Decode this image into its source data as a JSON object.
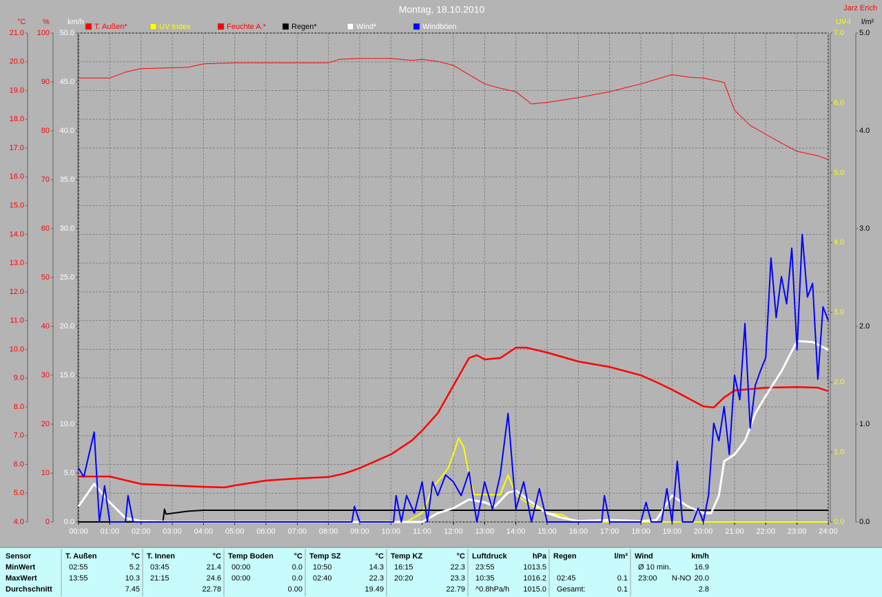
{
  "chart_data": {
    "type": "line",
    "title": "Montag, 18.10.2010",
    "author": "Jarz Erich",
    "grid": true,
    "x_axis": {
      "xlim": [
        0,
        24
      ],
      "xticks": [
        {
          "value": 0,
          "label": "00:00"
        },
        {
          "value": 1,
          "label": "01:00"
        },
        {
          "value": 2,
          "label": "02:00"
        },
        {
          "value": 3,
          "label": "03:00"
        },
        {
          "value": 4,
          "label": "04:00"
        },
        {
          "value": 5,
          "label": "05:00"
        },
        {
          "value": 6,
          "label": "06:00"
        },
        {
          "value": 7,
          "label": "07:00"
        },
        {
          "value": 8,
          "label": "08:00"
        },
        {
          "value": 9,
          "label": "09:00"
        },
        {
          "value": 10,
          "label": "10:00"
        },
        {
          "value": 11,
          "label": "11:00"
        },
        {
          "value": 12,
          "label": "12:00"
        },
        {
          "value": 13,
          "label": "13:00"
        },
        {
          "value": 14,
          "label": "14:00"
        },
        {
          "value": 15,
          "label": "15:00"
        },
        {
          "value": 16,
          "label": "16:00"
        },
        {
          "value": 17,
          "label": "17:00"
        },
        {
          "value": 18,
          "label": "18:00"
        },
        {
          "value": 19,
          "label": "19:00"
        },
        {
          "value": 20,
          "label": "20:00"
        },
        {
          "value": 21,
          "label": "21:00"
        },
        {
          "value": 22,
          "label": "22:00"
        },
        {
          "value": 23,
          "label": "23:00"
        },
        {
          "value": 24,
          "label": "24:00"
        }
      ]
    },
    "y_axes": [
      {
        "label": "°C",
        "side": "left",
        "color": "#ff0000",
        "ylim": [
          4,
          21
        ],
        "yticks": [
          {
            "value": 4,
            "label": "4.0"
          },
          {
            "value": 5,
            "label": "5.0"
          },
          {
            "value": 6,
            "label": "6.0"
          },
          {
            "value": 7,
            "label": "7.0"
          },
          {
            "value": 8,
            "label": "8.0"
          },
          {
            "value": 9,
            "label": "9.0"
          },
          {
            "value": 10,
            "label": "10.0"
          },
          {
            "value": 11,
            "label": "11.0"
          },
          {
            "value": 12,
            "label": "12.0"
          },
          {
            "value": 13,
            "label": "13.0"
          },
          {
            "value": 14,
            "label": "14.0"
          },
          {
            "value": 15,
            "label": "15.0"
          },
          {
            "value": 16,
            "label": "16.0"
          },
          {
            "value": 17,
            "label": "17.0"
          },
          {
            "value": 18,
            "label": "18.0"
          },
          {
            "value": 19,
            "label": "19.0"
          },
          {
            "value": 20,
            "label": "20.0"
          },
          {
            "value": 21,
            "label": "21.0"
          }
        ]
      },
      {
        "label": "%",
        "side": "left",
        "color": "#ff0000",
        "ylim": [
          0,
          100
        ],
        "yticks": [
          0,
          10,
          20,
          30,
          40,
          50,
          60,
          70,
          80,
          90,
          100
        ]
      },
      {
        "label": "km/h",
        "side": "left",
        "color": "#ffffff",
        "ylim": [
          0,
          50
        ],
        "yticks": [
          {
            "value": 0,
            "label": "0.0"
          },
          {
            "value": 5,
            "label": "5.0"
          },
          {
            "value": 10,
            "label": "10.0"
          },
          {
            "value": 15,
            "label": "15.0"
          },
          {
            "value": 20,
            "label": "20.0"
          },
          {
            "value": 25,
            "label": "25.0"
          },
          {
            "value": 30,
            "label": "30.0"
          },
          {
            "value": 35,
            "label": "35.0"
          },
          {
            "value": 40,
            "label": "40.0"
          },
          {
            "value": 45,
            "label": "45.0"
          },
          {
            "value": 50,
            "label": "50.0"
          }
        ]
      },
      {
        "label": "UV-I",
        "side": "right",
        "color": "#ffff00",
        "ylim": [
          0,
          7
        ],
        "yticks": [
          {
            "value": 0,
            "label": "0.0"
          },
          {
            "value": 1,
            "label": "1.0"
          },
          {
            "value": 2,
            "label": "2.0"
          },
          {
            "value": 3,
            "label": "3.0"
          },
          {
            "value": 4,
            "label": "4.0"
          },
          {
            "value": 5,
            "label": "5.0"
          },
          {
            "value": 6,
            "label": "6.0"
          },
          {
            "value": 7,
            "label": "7.0"
          }
        ]
      },
      {
        "label": "l/m²",
        "side": "right",
        "color": "#000000",
        "ylim": [
          0,
          5
        ],
        "yticks": [
          {
            "value": 0,
            "label": "0.0"
          },
          {
            "value": 1,
            "label": "1.0"
          },
          {
            "value": 2,
            "label": "2.0"
          },
          {
            "value": 3,
            "label": "3.0"
          },
          {
            "value": 4,
            "label": "4.0"
          },
          {
            "value": 5,
            "label": "5.0"
          }
        ]
      }
    ],
    "series": [
      {
        "name": "T. Außen*",
        "axis": "°C",
        "color": "#ff0000",
        "label_color": "#ff0000",
        "width": 2.5,
        "x": [
          0,
          1,
          2,
          3,
          4,
          4.667,
          5,
          6,
          7,
          8,
          8.5,
          9,
          10,
          10.667,
          11,
          11.5,
          12,
          12.5,
          12.75,
          13,
          13.5,
          14,
          14.333,
          15,
          16,
          17,
          18,
          18.5,
          19,
          19.5,
          20,
          20.333,
          20.667,
          21,
          22,
          23,
          23.667,
          24
        ],
        "values": [
          5.58,
          5.58,
          5.32,
          5.27,
          5.22,
          5.2,
          5.27,
          5.44,
          5.51,
          5.56,
          5.68,
          5.87,
          6.35,
          6.83,
          7.18,
          7.78,
          8.74,
          9.7,
          9.8,
          9.65,
          9.7,
          10.06,
          10.06,
          9.89,
          9.58,
          9.39,
          9.1,
          8.86,
          8.6,
          8.31,
          8.02,
          7.98,
          8.33,
          8.57,
          8.67,
          8.69,
          8.67,
          8.55
        ]
      },
      {
        "name": "UV Index",
        "axis": "UV-I",
        "color": "#ffff00",
        "label_color": "#ffff00",
        "width": 2,
        "x": [
          0,
          10.5,
          11,
          11.167,
          11.333,
          11.667,
          11.833,
          12,
          12.167,
          12.333,
          12.5,
          12.667,
          13,
          13.5,
          13.75,
          14,
          14.5,
          15,
          15.5,
          15.75,
          16,
          24
        ],
        "values": [
          0,
          0,
          0.13,
          0.3,
          0.49,
          0.67,
          0.77,
          0.97,
          1.2,
          1.07,
          0.67,
          0.39,
          0.39,
          0.39,
          0.67,
          0.39,
          0.23,
          0.13,
          0.1,
          0.03,
          0,
          0
        ]
      },
      {
        "name": "Feuchte A.*",
        "axis": "%",
        "color": "#ff0000",
        "label_color": "#ff0000",
        "width": 1,
        "x": [
          0,
          1,
          1.5,
          2,
          3.5,
          4,
          5,
          6,
          8,
          8.333,
          9,
          10,
          10.667,
          11,
          11.5,
          12,
          12.5,
          13,
          13.5,
          14,
          14.5,
          15,
          16,
          17,
          18,
          19,
          19.5,
          20,
          20.667,
          21,
          21.5,
          22,
          22.5,
          23,
          23.667,
          24
        ],
        "values": [
          90.8,
          90.8,
          92,
          92.7,
          93,
          93.7,
          93.9,
          93.9,
          93.9,
          94.6,
          94.8,
          94.8,
          94.4,
          94.6,
          94.2,
          93.4,
          91.5,
          89.6,
          88.7,
          88,
          85.5,
          85.8,
          86.8,
          88,
          89.6,
          91.5,
          91,
          90.8,
          89.9,
          84.2,
          81.1,
          79.3,
          77.5,
          75.8,
          74.9,
          74.1
        ]
      },
      {
        "name": "Regen*",
        "axis": "l/m²",
        "color": "#000000",
        "label_color": "#000000",
        "width": 2,
        "x": [
          0,
          2.7,
          2.75,
          2.8,
          3.5,
          4,
          24
        ],
        "values": [
          0,
          0,
          0.13,
          0.08,
          0.11,
          0.12,
          0.12
        ]
      },
      {
        "name": "Wind*",
        "axis": "km/h",
        "color": "#ffffff",
        "label_color": "#ffffff",
        "width": 3,
        "x": [
          0,
          0.5,
          1,
          1.5,
          2,
          3,
          11,
          11.5,
          12,
          12.5,
          13,
          13.333,
          13.75,
          14,
          14.5,
          15,
          15.5,
          16,
          17,
          18,
          18.5,
          19,
          19.5,
          20,
          20.25,
          20.5,
          20.667,
          21,
          21.333,
          21.667,
          22,
          22.5,
          23,
          23.5,
          24
        ],
        "values": [
          1.6,
          3.9,
          2,
          0.4,
          0.1,
          0,
          0,
          0.9,
          1.4,
          2.3,
          2,
          1.6,
          3,
          3.2,
          2,
          0.9,
          0.4,
          0.1,
          0.2,
          0.1,
          0.2,
          2.7,
          1.6,
          0.9,
          0.9,
          2.7,
          6.2,
          6.9,
          8.3,
          11.1,
          12.9,
          15.4,
          18.5,
          18.4,
          17.6
        ]
      },
      {
        "name": "Windböen",
        "axis": "km/h",
        "color": "#0000ff",
        "label_color": "#ffffff",
        "width": 2,
        "x": [
          0,
          0.167,
          0.5,
          0.667,
          0.833,
          1,
          1.5,
          1.583,
          1.75,
          8.75,
          8.833,
          9,
          10.083,
          10.167,
          10.333,
          10.5,
          10.75,
          11,
          11.167,
          11.333,
          11.5,
          11.75,
          12,
          12.25,
          12.5,
          12.75,
          13,
          13.25,
          13.5,
          13.75,
          14,
          14.25,
          14.5,
          14.75,
          15,
          16.75,
          16.833,
          17,
          18,
          18.167,
          18.333,
          18.667,
          18.833,
          19,
          19.167,
          19.333,
          19.667,
          19.833,
          20,
          20.167,
          20.333,
          20.5,
          20.667,
          20.833,
          21,
          21.167,
          21.333,
          21.5,
          21.667,
          21.833,
          22,
          22.167,
          22.333,
          22.5,
          22.667,
          22.833,
          23,
          23.167,
          23.333,
          23.5,
          23.667,
          23.833,
          24
        ],
        "values": [
          5.5,
          4.6,
          9.2,
          0,
          3.7,
          0,
          0,
          2.7,
          0,
          0,
          1.6,
          0,
          0,
          2.7,
          0,
          2.7,
          0.9,
          4.1,
          0,
          4.1,
          2.7,
          4.8,
          4.1,
          2.7,
          5.1,
          0,
          4.1,
          1.3,
          4.8,
          11.1,
          1.3,
          4.1,
          0,
          3.4,
          0,
          0,
          2.7,
          0,
          0,
          2,
          0,
          0,
          3.4,
          0,
          6.2,
          0,
          0,
          1.4,
          0,
          2.7,
          10.1,
          8.3,
          11.8,
          6.9,
          15,
          12.5,
          20.3,
          9.6,
          14,
          15.5,
          16.8,
          27,
          20.9,
          25.1,
          22.3,
          28,
          17.6,
          29.4,
          23,
          24.4,
          14.6,
          22,
          20.6
        ]
      }
    ]
  },
  "table": {
    "row_labels": [
      "Sensor",
      "MinWert",
      "MaxWert",
      "Durchschnitt"
    ],
    "groups": [
      {
        "name": "T. Außen",
        "unit": "°C",
        "min": {
          "time": "02:55",
          "value": "5.2"
        },
        "max": {
          "time": "13:55",
          "value": "10.3"
        },
        "avg": {
          "value": "7.45"
        }
      },
      {
        "name": "T. Innen",
        "unit": "°C",
        "min": {
          "time": "03:45",
          "value": "21.4"
        },
        "max": {
          "time": "21:15",
          "value": "24.6"
        },
        "avg": {
          "value": "22.78"
        }
      },
      {
        "name": "Temp Boden",
        "unit": "°C",
        "min": {
          "time": "00:00",
          "value": "0.0"
        },
        "max": {
          "time": "00:00",
          "value": "0.0"
        },
        "avg": {
          "value": "0.00"
        }
      },
      {
        "name": "Temp SZ",
        "unit": "°C",
        "min": {
          "time": "10:50",
          "value": "14.3"
        },
        "max": {
          "time": "02:40",
          "value": "22.3"
        },
        "avg": {
          "value": "19.49"
        }
      },
      {
        "name": "Temp KZ",
        "unit": "°C",
        "min": {
          "time": "16:15",
          "value": "22.3"
        },
        "max": {
          "time": "20:20",
          "value": "23.3"
        },
        "avg": {
          "value": "22.79"
        }
      },
      {
        "name": "Luftdruck",
        "unit": "hPa",
        "min": {
          "time": "23:55",
          "value": "1013.5"
        },
        "max": {
          "time": "10:35",
          "value": "1016.2"
        },
        "avg": {
          "time": "^0.8hPa/h",
          "value": "1015.0"
        }
      },
      {
        "name": "Regen",
        "unit": "l/m²",
        "max": {
          "time": "02:45",
          "value": "0.1"
        },
        "avg": {
          "time": "Gesamt:",
          "value": "0.1"
        }
      },
      {
        "name": "Wind",
        "unit": "km/h",
        "min": {
          "time": "Ø 10 min.",
          "value": "16.9"
        },
        "max": {
          "time": "23:00",
          "direction": "N-NO",
          "value": "20.0"
        },
        "avg": {
          "value": "2.8"
        }
      }
    ]
  }
}
